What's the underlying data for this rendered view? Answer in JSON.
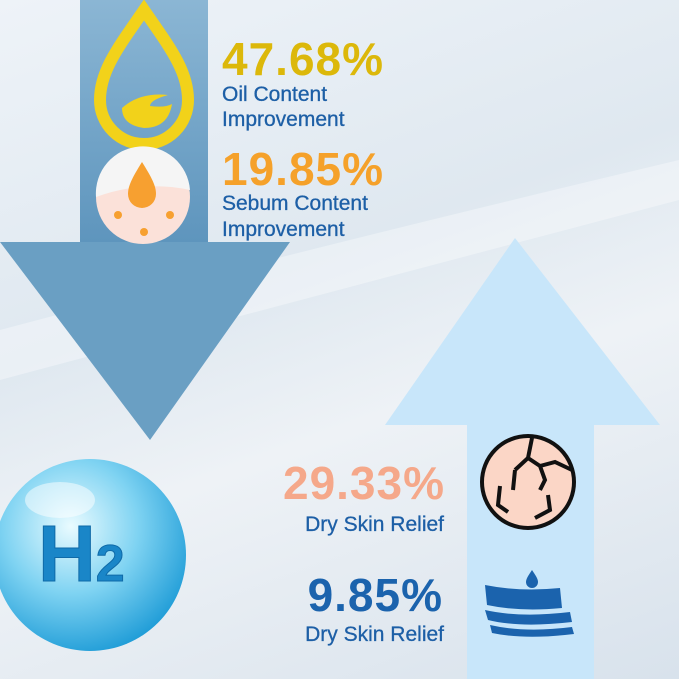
{
  "stats": [
    {
      "value": "47.68%",
      "label_line1": "Oil Content",
      "label_line2": "Improvement",
      "color": "#dcb80a"
    },
    {
      "value": "19.85%",
      "label_line1": "Sebum Content",
      "label_line2": "Improvement",
      "color": "#f5a12a"
    },
    {
      "value": "29.33%",
      "label": "Dry Skin Relief",
      "color": "#f5a88a"
    },
    {
      "value": "9.85%",
      "label": "Dry Skin Relief",
      "color": "#1b63ad"
    }
  ],
  "bubble": {
    "text": "H",
    "subscript": "2"
  },
  "colors": {
    "down_arrow": "#6a9fc3",
    "up_arrow": "#c8e6fa",
    "label_blue": "#1d5fa6"
  }
}
